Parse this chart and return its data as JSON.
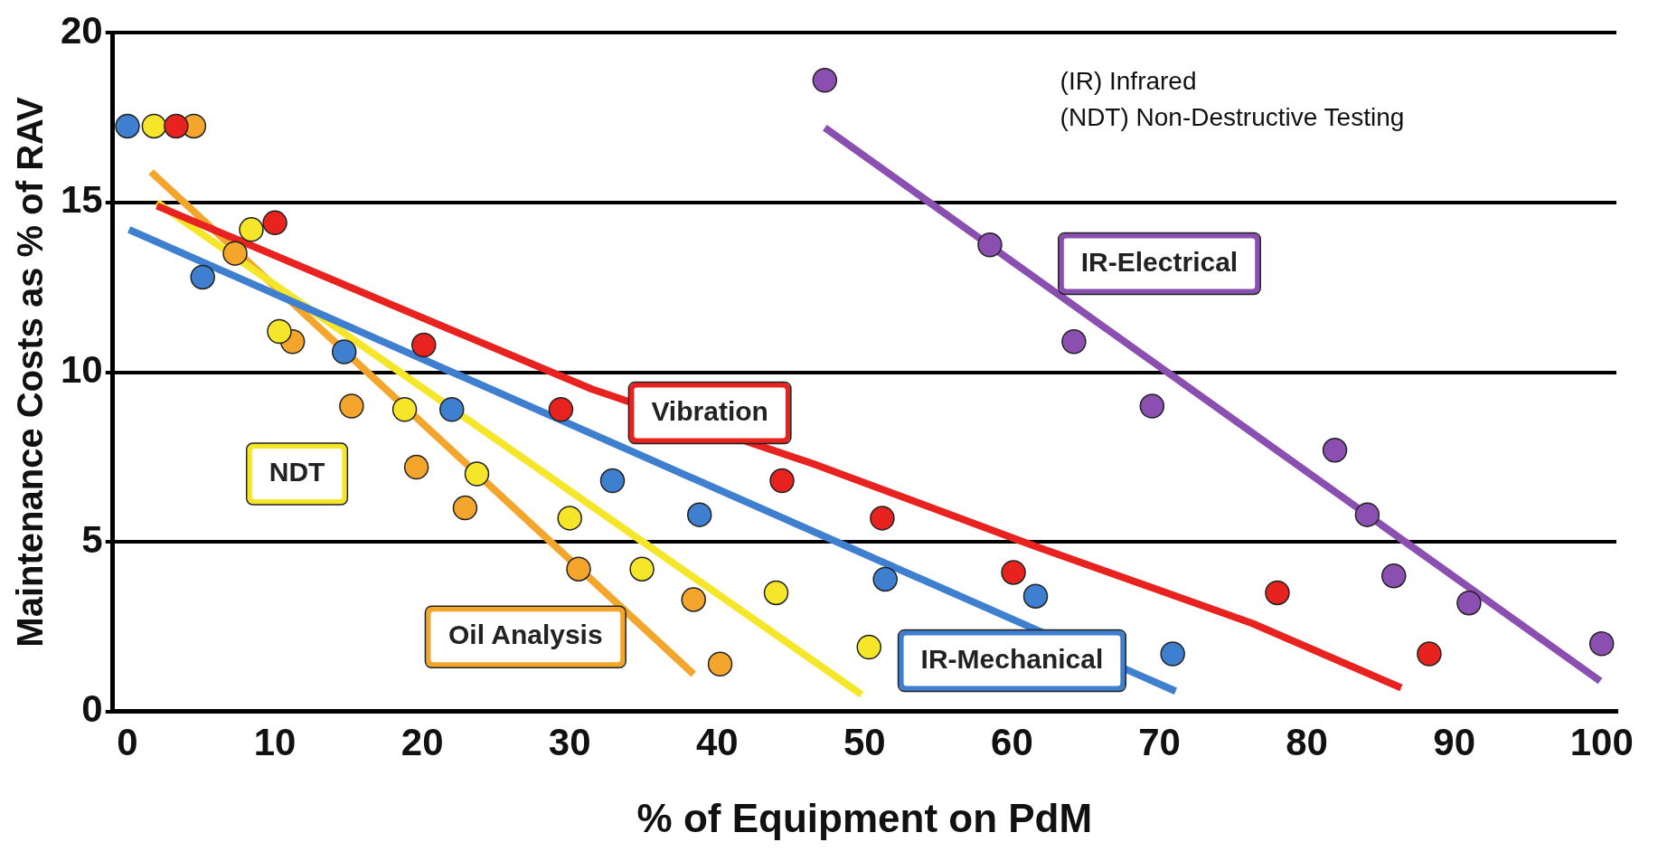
{
  "chart_data": {
    "type": "scatter",
    "xlabel": "% of Equipment on PdM",
    "ylabel": "Maintenance Costs as % of RAV",
    "xlim": [
      -1,
      101
    ],
    "xticks": [
      0,
      10,
      20,
      30,
      40,
      50,
      60,
      70,
      80,
      90,
      100
    ],
    "ylim": [
      0,
      20
    ],
    "yticks": [
      0,
      5,
      10,
      15,
      20
    ],
    "grid": "y",
    "legend": false,
    "annotations": [
      "(IR) Infrared",
      "(NDT) Non-Destructive Testing"
    ],
    "series": [
      {
        "name": "IR-Mechanical",
        "type": "scatter",
        "marker": "circle",
        "color": "#3f7fd0",
        "x": [
          0,
          5.1,
          14.7,
          22,
          32.9,
          38.8,
          51.4,
          61.6,
          70.9
        ],
        "values": [
          17.25,
          12.8,
          10.6,
          8.9,
          6.8,
          5.8,
          3.9,
          3.4,
          1.7
        ]
      },
      {
        "name": "Vibration",
        "type": "scatter",
        "marker": "circle",
        "color": "#e8231f",
        "x": [
          3.3,
          10,
          20.1,
          29.4,
          44.4,
          51.2,
          60.1,
          78,
          88.3
        ],
        "values": [
          17.25,
          14.4,
          10.8,
          8.9,
          6.8,
          5.7,
          4.1,
          3.5,
          1.7
        ]
      },
      {
        "name": "NDT",
        "type": "scatter",
        "marker": "circle",
        "color": "#f5e62a",
        "x": [
          1.8,
          8.4,
          10.3,
          18.8,
          23.7,
          30,
          34.9,
          44,
          50.3
        ],
        "values": [
          17.25,
          14.2,
          11.2,
          8.9,
          7,
          5.7,
          4.2,
          3.5,
          1.9
        ]
      },
      {
        "name": "Oil Analysis",
        "type": "scatter",
        "marker": "circle",
        "color": "#f4a52c",
        "x": [
          4.5,
          7.3,
          11.2,
          15.2,
          19.6,
          22.9,
          30.6,
          38.4,
          40.2
        ],
        "values": [
          17.25,
          13.5,
          10.9,
          9,
          7.2,
          6,
          4.2,
          3.3,
          1.4
        ]
      },
      {
        "name": "IR-Electrical",
        "type": "scatter",
        "marker": "circle",
        "color": "#8a4fb0",
        "x": [
          47.3,
          58.5,
          64.2,
          69.5,
          81.9,
          84.1,
          85.9,
          91,
          100
        ],
        "values": [
          18.6,
          13.75,
          10.9,
          9,
          7.7,
          5.8,
          4,
          3.2,
          2
        ]
      },
      {
        "type": "line",
        "marker": "none",
        "color": "#3f7fd0",
        "x": [
          0.1,
          71.1
        ],
        "values": [
          14.2,
          0.6
        ]
      },
      {
        "type": "line",
        "marker": "none",
        "color": "#e8231f",
        "x": [
          2,
          31.5,
          46.5,
          61.4,
          76.3,
          86.4
        ],
        "values": [
          14.9,
          9.5,
          7.3,
          4.9,
          2.6,
          0.7
        ]
      },
      {
        "type": "line",
        "marker": "none",
        "color": "#f5e62a",
        "x": [
          2,
          49.8
        ],
        "values": [
          15,
          0.5
        ]
      },
      {
        "type": "line",
        "marker": "none",
        "color": "#f4a52c",
        "x": [
          1.6,
          38.4
        ],
        "values": [
          15.9,
          1.1
        ]
      },
      {
        "type": "line",
        "marker": "none",
        "color": "#8a4fb0",
        "x": [
          47.3,
          99.9
        ],
        "values": [
          17.2,
          0.9
        ]
      }
    ]
  }
}
